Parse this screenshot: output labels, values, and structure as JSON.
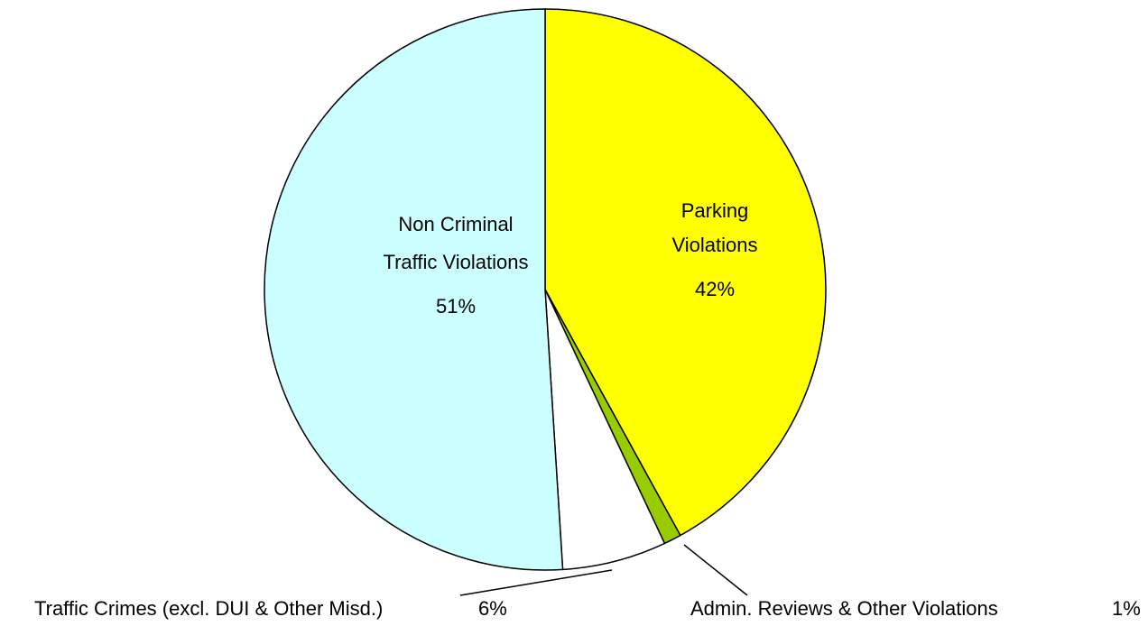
{
  "chart_data": {
    "type": "pie",
    "categories": [
      "Parking Violations",
      "Admin. Reviews & Other Violations",
      "Traffic Crimes (excl. DUI & Other Misd.)",
      "Non Criminal Traffic Violations"
    ],
    "values": [
      42,
      1,
      6,
      51
    ],
    "value_labels": [
      "42%",
      "1%",
      "6%",
      "51%"
    ],
    "colors": [
      "#ffff00",
      "#99cc00",
      "#ffffff",
      "#ccffff"
    ]
  }
}
